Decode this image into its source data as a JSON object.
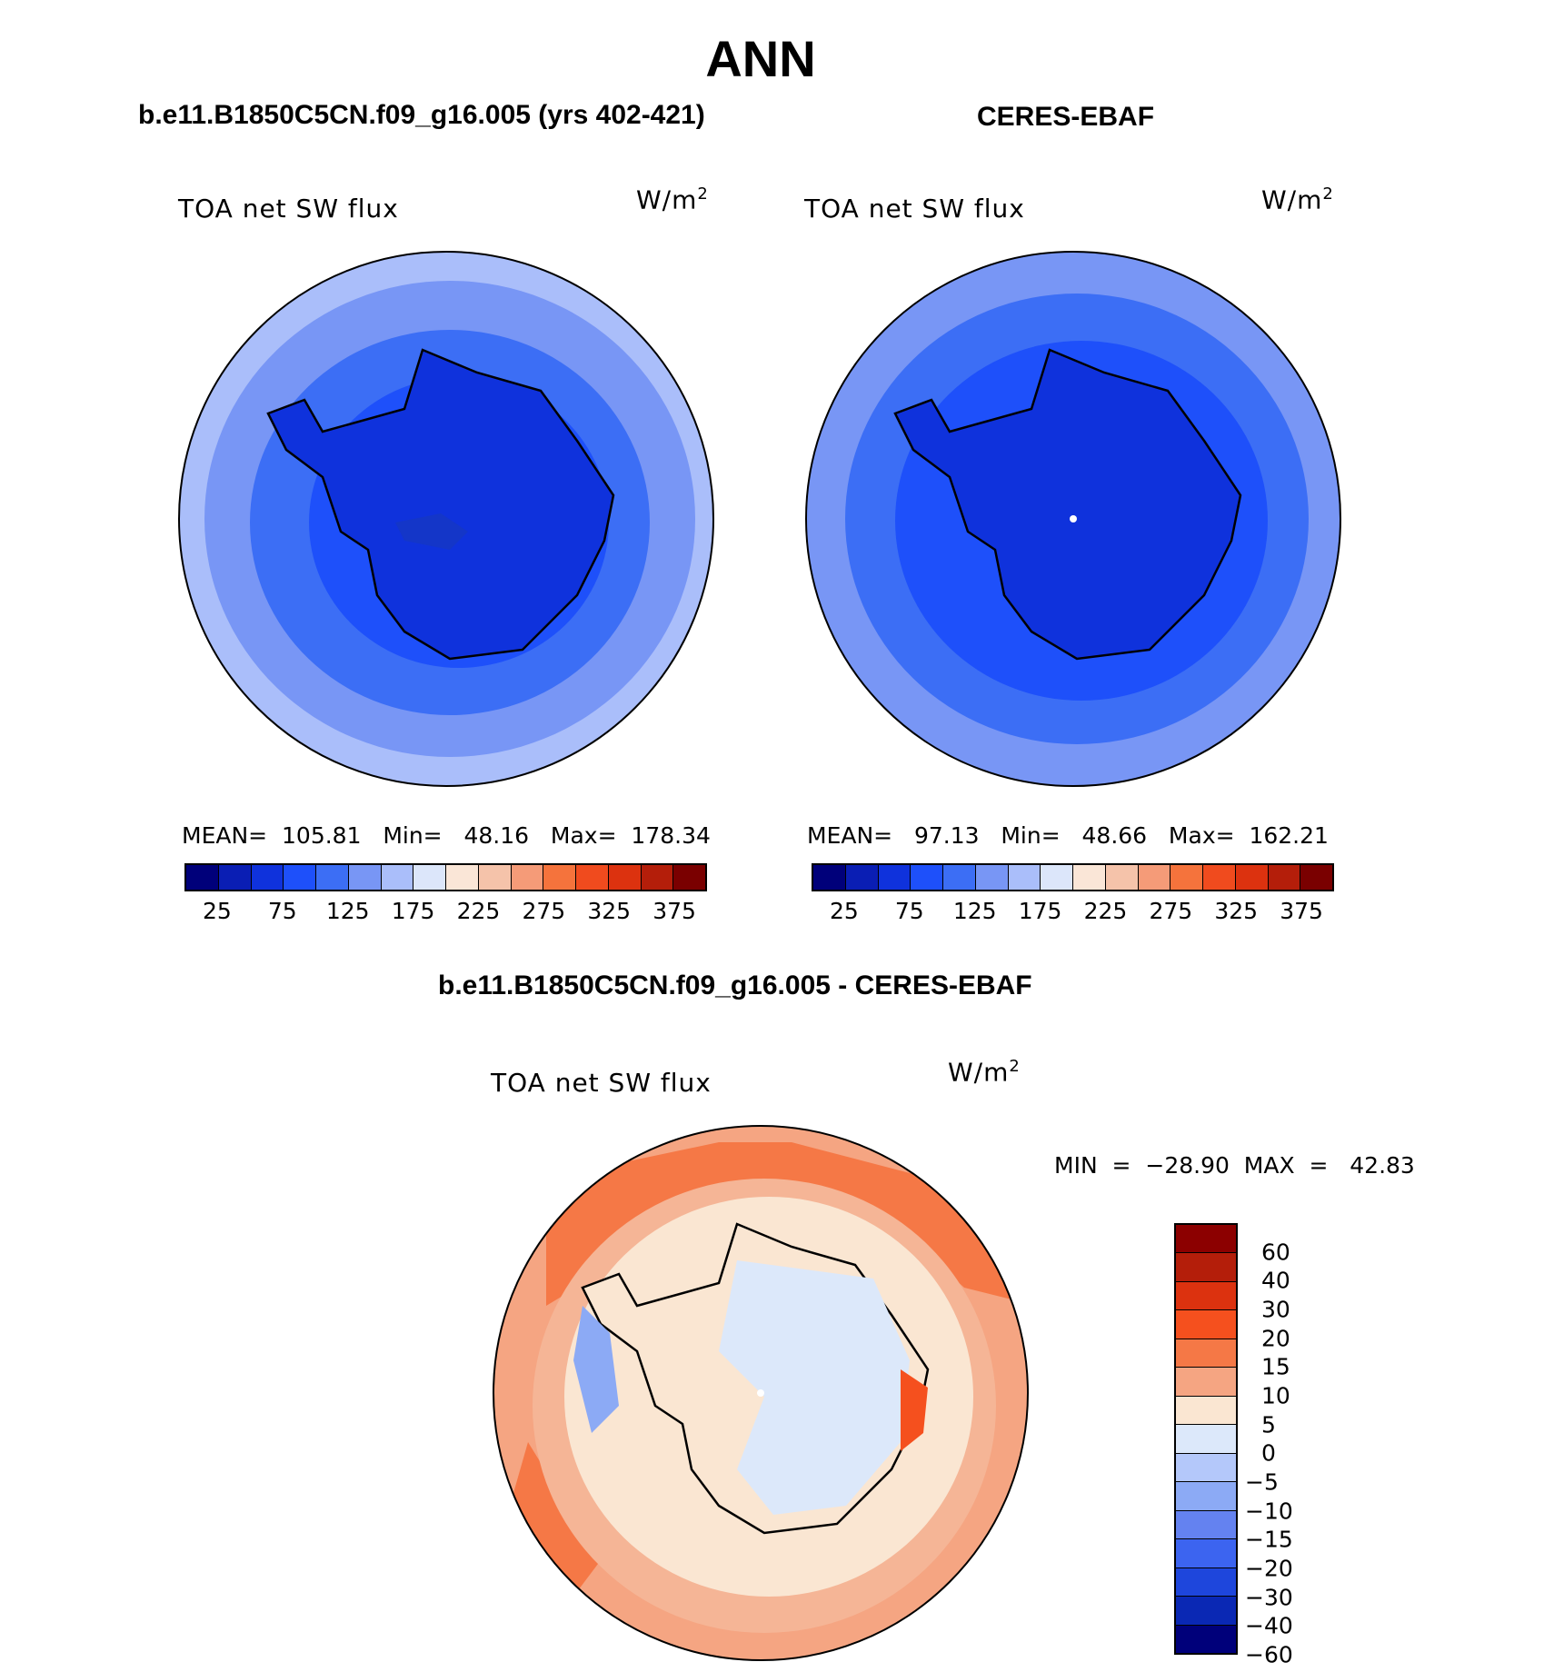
{
  "figure": {
    "title": "ANN",
    "units": "W/m",
    "units_exp": "2"
  },
  "panel_model": {
    "subtitle": "b.e11.B1850C5CN.f09_g16.005 (yrs 402-421)",
    "label": "TOA net SW flux",
    "stats": "MEAN=  105.81   Min=   48.16   Max=  178.34"
  },
  "panel_obs": {
    "subtitle": "CERES-EBAF",
    "label": "TOA net SW flux",
    "stats": "MEAN=   97.13   Min=   48.66   Max=  162.21"
  },
  "panel_diff": {
    "subtitle": "b.e11.B1850C5CN.f09_g16.005 - CERES-EBAF",
    "label": "TOA net SW flux",
    "stats": "MIN  =  −28.90  MAX  =   42.83"
  },
  "colorbar_abs": {
    "colors": [
      "#00007a",
      "#0a1eb4",
      "#0f32dc",
      "#1e50fa",
      "#3c6ef5",
      "#7896f5",
      "#aabefa",
      "#dce6fa",
      "#fae6d7",
      "#f5c3aa",
      "#f59b78",
      "#f5733c",
      "#f04b1e",
      "#dc320f",
      "#b41e0a",
      "#7a0000"
    ],
    "ticks": [
      "25",
      "75",
      "125",
      "175",
      "225",
      "275",
      "325",
      "375"
    ]
  },
  "colorbar_diff": {
    "colors": [
      "#8c0000",
      "#b41e0a",
      "#dc320f",
      "#f5501e",
      "#f57846",
      "#f5a582",
      "#fae6d2",
      "#dce8fa",
      "#b4c8fa",
      "#8caaf5",
      "#6482f0",
      "#3c64f0",
      "#1e46dc",
      "#0a28b4",
      "#00007a"
    ],
    "ticks": [
      "60",
      "40",
      "30",
      "20",
      "15",
      "10",
      "5",
      "0",
      "−5",
      "−10",
      "−15",
      "−20",
      "−30",
      "−40",
      "−60"
    ]
  },
  "chart_data": [
    {
      "type": "heatmap",
      "title": "TOA net SW flux",
      "subtitle": "b.e11.B1850C5CN.f09_g16.005 (yrs 402-421)",
      "projection": "south polar stereographic",
      "units": "W/m2",
      "levels": [
        0,
        25,
        50,
        75,
        100,
        125,
        150,
        175,
        200,
        225,
        250,
        275,
        300,
        325,
        350,
        375,
        400
      ],
      "mean": 105.81,
      "min": 48.16,
      "max": 178.34
    },
    {
      "type": "heatmap",
      "title": "TOA net SW flux",
      "subtitle": "CERES-EBAF",
      "projection": "south polar stereographic",
      "units": "W/m2",
      "levels": [
        0,
        25,
        50,
        75,
        100,
        125,
        150,
        175,
        200,
        225,
        250,
        275,
        300,
        325,
        350,
        375,
        400
      ],
      "mean": 97.13,
      "min": 48.66,
      "max": 162.21
    },
    {
      "type": "heatmap",
      "title": "TOA net SW flux",
      "subtitle": "b.e11.B1850C5CN.f09_g16.005 - CERES-EBAF",
      "projection": "south polar stereographic",
      "units": "W/m2",
      "levels": [
        60,
        40,
        30,
        20,
        15,
        10,
        5,
        0,
        -5,
        -10,
        -15,
        -20,
        -30,
        -40,
        -60
      ],
      "min": -28.9,
      "max": 42.83
    }
  ]
}
